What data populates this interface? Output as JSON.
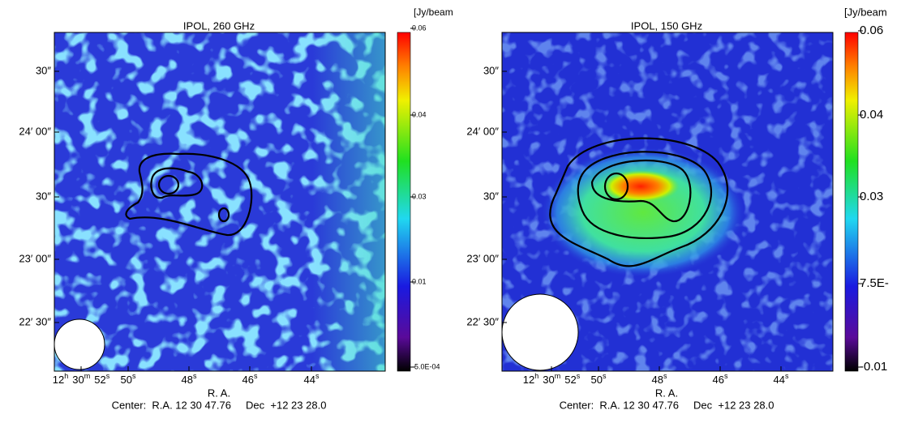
{
  "panels": [
    {
      "title": "IPOL, 260 GHz",
      "unit": "[Jy/beam",
      "colorbar_labels": [
        "0.06",
        "0.04",
        "0.03",
        "0.01",
        "-5.0E-04"
      ],
      "dec_labels": [
        "30″",
        "24′ 00″",
        "30″",
        "23′ 00″",
        "22′ 30″"
      ],
      "ra_labels": [
        [
          [
            "12",
            "h"
          ],
          [
            "30",
            "m"
          ],
          [
            "52",
            "s"
          ]
        ],
        [
          [
            "50",
            "s"
          ]
        ],
        [
          [
            "48",
            "s"
          ]
        ],
        [
          [
            "46",
            "s"
          ]
        ],
        [
          [
            "44",
            "s"
          ]
        ]
      ],
      "xlabel": "R. A.",
      "center": "Center:  R.A. 12 30 47.76     Dec  +12 23 28.0"
    },
    {
      "title": "IPOL, 150 GHz",
      "unit": "[Jy/beam",
      "colorbar_labels": [
        "0.06",
        "0.04",
        "0.03",
        "7.5E-",
        "-0.01"
      ],
      "dec_labels": [
        "30″",
        "24′ 00″",
        "30″",
        "23′ 00″",
        "22′ 30″"
      ],
      "ra_labels": [
        [
          [
            "12",
            "h"
          ],
          [
            "30",
            "m"
          ],
          [
            "52",
            "s"
          ]
        ],
        [
          [
            "50",
            "s"
          ]
        ],
        [
          [
            "48",
            "s"
          ]
        ],
        [
          [
            "46",
            "s"
          ]
        ],
        [
          [
            "44",
            "s"
          ]
        ]
      ],
      "xlabel": "R. A.",
      "center": "Center:  R.A. 12 30 47.76     Dec  +12 23 28.0"
    }
  ]
}
